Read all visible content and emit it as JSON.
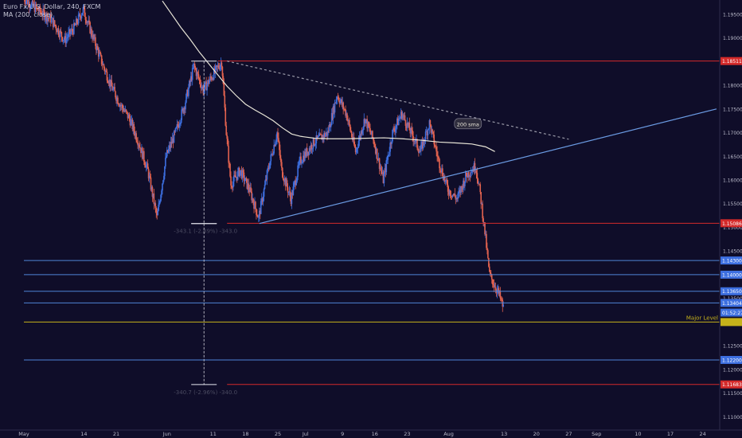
{
  "legend": {
    "symbol": "Euro Fx/U.S. Dollar, 240, FXCM",
    "indicator": "MA (200, close)"
  },
  "colors": {
    "background": "#0f0d29",
    "up": "#3d6fe0",
    "down": "#e2624f",
    "sma": "#e9e6d8",
    "red_level": "#d42a2a",
    "blue_level": "#4f84d6",
    "major_level": "#c6b21a",
    "trendline": "#6b9be3",
    "axis_text": "#b9b9c9"
  },
  "chart_data": {
    "type": "candlestick",
    "y_axis": {
      "ylim": [
        1.1072,
        1.198
      ],
      "ticks": [
        "1.19500",
        "1.19000",
        "1.18500",
        "1.18000",
        "1.17500",
        "1.17000",
        "1.16500",
        "1.16000",
        "1.15500",
        "1.15000",
        "1.14500",
        "1.14000",
        "1.13500",
        "1.13000",
        "1.12500",
        "1.12000",
        "1.11500",
        "1.11000"
      ],
      "tick_values": [
        1.195,
        1.19,
        1.185,
        1.18,
        1.175,
        1.17,
        1.165,
        1.16,
        1.155,
        1.15,
        1.145,
        1.14,
        1.135,
        1.13,
        1.125,
        1.12,
        1.115,
        1.11
      ]
    },
    "x_axis": {
      "labels": [
        "May",
        "14",
        "21",
        "Jun",
        "11",
        "18",
        "25",
        "Jul",
        "9",
        "16",
        "23",
        "Aug",
        "13",
        "20",
        "27",
        "Sep",
        "10",
        "17",
        "24"
      ],
      "label_day": [
        0,
        13,
        20,
        31,
        41,
        48,
        55,
        61,
        69,
        76,
        83,
        92,
        104,
        111,
        118,
        124,
        133,
        140,
        147
      ],
      "day_min": 0,
      "day_max": 150
    },
    "horizontal_levels": [
      {
        "value": 1.18511,
        "label": "1.18511",
        "kind": "red",
        "start_day": 42
      },
      {
        "value": 1.15086,
        "label": "1.15086",
        "kind": "red",
        "start_day": 44
      },
      {
        "value": 1.11683,
        "label": "1.11683",
        "kind": "red",
        "start_day": 44
      },
      {
        "value": 1.143,
        "label": "1.14300",
        "kind": "blue",
        "start_day": 0
      },
      {
        "value": 1.14,
        "label": "1.14000",
        "kind": "blue",
        "start_day": 0
      },
      {
        "value": 1.1365,
        "label": "1.13650",
        "kind": "blue",
        "start_day": 0
      },
      {
        "value": 1.13404,
        "label": "1.13404",
        "kind": "blue",
        "start_day": 0
      },
      {
        "value": 1.122,
        "label": "1.12200",
        "kind": "blue",
        "start_day": 0
      },
      {
        "value": 1.13,
        "label": "Major Level",
        "kind": "major",
        "start_day": 0
      }
    ],
    "price_tags": [
      {
        "value": 1.18511,
        "text": "1.18511",
        "bg": "#d42a2a"
      },
      {
        "value": 1.15086,
        "text": "1.15086",
        "bg": "#d42a2a"
      },
      {
        "value": 1.143,
        "text": "1.14300",
        "bg": "#3d6fe0"
      },
      {
        "value": 1.14,
        "text": "1.14000",
        "bg": "#3d6fe0"
      },
      {
        "value": 1.1365,
        "text": "1.13650",
        "bg": "#3d6fe0"
      },
      {
        "value": 1.13404,
        "text": "1.13404",
        "bg": "#3d6fe0"
      },
      {
        "value": 1.132,
        "text": "01:52:27",
        "bg": "#3d6fe0"
      },
      {
        "value": 1.122,
        "text": "1.12200",
        "bg": "#3d6fe0"
      },
      {
        "value": 1.11683,
        "text": "1.11683",
        "bg": "#d42a2a"
      }
    ],
    "major_level_label": "Major Level",
    "trendlines": [
      {
        "from": [
          51,
          1.1508
        ],
        "to": [
          150,
          1.175
        ],
        "style": "solid",
        "color": "#6b9be3"
      },
      {
        "from": [
          44,
          1.1851
        ],
        "to": [
          118,
          1.1686
        ],
        "style": "dashed",
        "color": "#9a9aa8"
      }
    ],
    "sma_label": "200 sma",
    "sma": [
      [
        30,
        1.1978
      ],
      [
        32,
        1.195
      ],
      [
        34,
        1.1922
      ],
      [
        36,
        1.1897
      ],
      [
        38,
        1.187
      ],
      [
        40,
        1.1846
      ],
      [
        42,
        1.1822
      ],
      [
        44,
        1.1798
      ],
      [
        46,
        1.1778
      ],
      [
        48,
        1.176
      ],
      [
        50,
        1.1748
      ],
      [
        52,
        1.1737
      ],
      [
        54,
        1.1725
      ],
      [
        56,
        1.171
      ],
      [
        58,
        1.1697
      ],
      [
        60,
        1.1692
      ],
      [
        63,
        1.1688
      ],
      [
        66,
        1.1687
      ],
      [
        70,
        1.1687
      ],
      [
        74,
        1.1688
      ],
      [
        78,
        1.1689
      ],
      [
        82,
        1.1687
      ],
      [
        86,
        1.1684
      ],
      [
        90,
        1.168
      ],
      [
        94,
        1.1678
      ],
      [
        97,
        1.1676
      ],
      [
        100,
        1.167
      ],
      [
        102,
        1.166
      ]
    ],
    "measure": [
      {
        "day": 39,
        "from": 1.1851,
        "to": 1.1508,
        "label": "-343.1 (-2.89%) -343.0"
      },
      {
        "day": 39,
        "from": 1.1508,
        "to": 1.1168,
        "label": "-340.7 (-2.96%) -340.0"
      }
    ],
    "price_path": [
      [
        0,
        1.1985
      ],
      [
        3,
        1.196
      ],
      [
        6,
        1.194
      ],
      [
        9,
        1.1895
      ],
      [
        11,
        1.192
      ],
      [
        13,
        1.196
      ],
      [
        15,
        1.1905
      ],
      [
        17,
        1.185
      ],
      [
        19,
        1.18
      ],
      [
        21,
        1.176
      ],
      [
        23,
        1.173
      ],
      [
        25,
        1.168
      ],
      [
        27,
        1.162
      ],
      [
        29,
        1.152
      ],
      [
        31,
        1.165
      ],
      [
        33,
        1.17
      ],
      [
        35,
        1.176
      ],
      [
        37,
        1.184
      ],
      [
        39,
        1.179
      ],
      [
        41,
        1.182
      ],
      [
        43,
        1.185
      ],
      [
        44,
        1.17
      ],
      [
        45,
        1.159
      ],
      [
        47,
        1.162
      ],
      [
        49,
        1.158
      ],
      [
        51,
        1.152
      ],
      [
        53,
        1.162
      ],
      [
        55,
        1.17
      ],
      [
        56,
        1.162
      ],
      [
        58,
        1.156
      ],
      [
        60,
        1.164
      ],
      [
        63,
        1.168
      ],
      [
        66,
        1.17
      ],
      [
        68,
        1.178
      ],
      [
        70,
        1.174
      ],
      [
        72,
        1.166
      ],
      [
        74,
        1.173
      ],
      [
        76,
        1.168
      ],
      [
        78,
        1.16
      ],
      [
        80,
        1.17
      ],
      [
        82,
        1.174
      ],
      [
        84,
        1.17
      ],
      [
        86,
        1.166
      ],
      [
        88,
        1.172
      ],
      [
        90,
        1.164
      ],
      [
        92,
        1.158
      ],
      [
        94,
        1.156
      ],
      [
        96,
        1.161
      ],
      [
        98,
        1.163
      ],
      [
        99,
        1.157
      ],
      [
        100,
        1.149
      ],
      [
        101,
        1.14
      ],
      [
        102,
        1.138
      ],
      [
        103,
        1.136
      ],
      [
        104,
        1.133
      ]
    ]
  }
}
